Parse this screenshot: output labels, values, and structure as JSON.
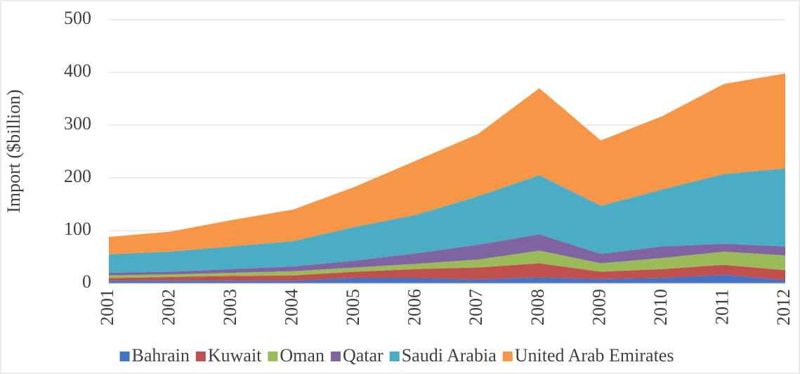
{
  "chart_data": {
    "type": "stacked_area",
    "y_label": "Import ($billion)",
    "categories": [
      "2001",
      "2002",
      "2003",
      "2004",
      "2005",
      "2006",
      "2007",
      "2008",
      "2009",
      "2010",
      "2011",
      "2012"
    ],
    "series": [
      {
        "name": "Bahrain",
        "color": "#4472c4",
        "values": [
          5,
          5,
          5,
          5,
          10,
          10,
          7,
          11,
          8,
          10,
          16,
          6
        ]
      },
      {
        "name": "Kuwait",
        "color": "#c0504d",
        "values": [
          5,
          7,
          9,
          10,
          12,
          17,
          23,
          27,
          14,
          17,
          19,
          19
        ]
      },
      {
        "name": "Oman",
        "color": "#9bbb59",
        "values": [
          5,
          5,
          6,
          8,
          8,
          10,
          15,
          24,
          16,
          21,
          25,
          28
        ]
      },
      {
        "name": "Qatar",
        "color": "#8064a2",
        "values": [
          5,
          5,
          7,
          9,
          13,
          20,
          28,
          31,
          18,
          22,
          15,
          17
        ]
      },
      {
        "name": "Saudi Arabia",
        "color": "#4bacc6",
        "values": [
          35,
          38,
          43,
          48,
          64,
          73,
          92,
          112,
          91,
          108,
          132,
          148
        ]
      },
      {
        "name": "United Arab Emirates",
        "color": "#f79646",
        "values": [
          33,
          38,
          50,
          60,
          76,
          103,
          118,
          165,
          124,
          139,
          171,
          180
        ]
      }
    ],
    "ylim": [
      0,
      500
    ],
    "yticks": [
      0,
      100,
      200,
      300,
      400,
      500
    ],
    "grid": true,
    "legend": "bottom"
  }
}
